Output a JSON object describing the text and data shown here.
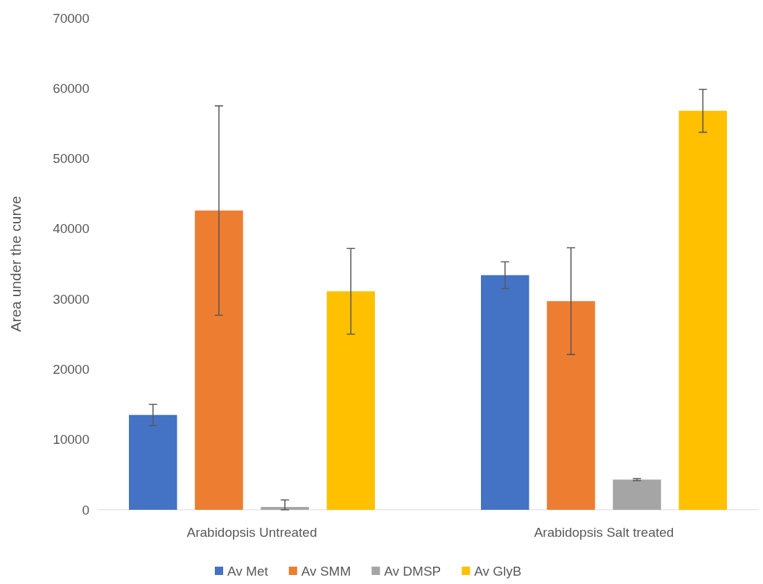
{
  "chart_data": {
    "type": "bar",
    "ylabel": "Area under the curve",
    "categories": [
      "Arabidopsis Untreated",
      "Arabidopsis Salt treated"
    ],
    "series": [
      {
        "name": "Av Met",
        "color": "#4472c4",
        "values": [
          13500,
          33400
        ],
        "errors": [
          1500,
          1900
        ]
      },
      {
        "name": "Av SMM",
        "color": "#ed7d31",
        "values": [
          42600,
          29700
        ],
        "errors": [
          14900,
          7600
        ]
      },
      {
        "name": "Av DMSP",
        "color": "#a5a5a5",
        "values": [
          400,
          4300
        ],
        "errors": [
          [
            0,
            1400
          ],
          150
        ]
      },
      {
        "name": "Av GlyB",
        "color": "#ffc000",
        "values": [
          31100,
          56800
        ],
        "errors": [
          6100,
          3050
        ]
      }
    ],
    "ylim": [
      0,
      70000
    ],
    "yticks": [
      0,
      10000,
      20000,
      30000,
      40000,
      50000,
      60000,
      70000
    ],
    "legend": "bottom",
    "grid": false
  }
}
